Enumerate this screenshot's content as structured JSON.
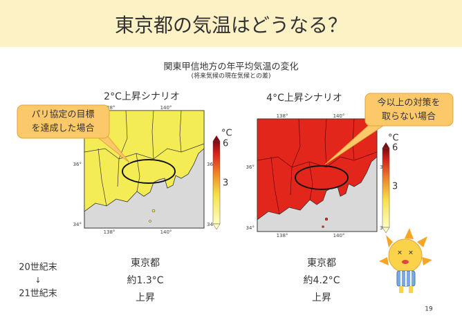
{
  "header": {
    "title": "東京都の気温はどうなる？"
  },
  "subtitle": "関東甲信地方の年平均気温の変化",
  "note": "(将来気候の現在気候との差)",
  "maps": [
    {
      "scenario": "2°C上昇シナリオ",
      "callout": [
        "パリ協定の目標",
        "を達成した場合"
      ],
      "lon_labels": [
        "138°",
        "140°"
      ],
      "lat_labels": [
        "36°",
        "34°"
      ],
      "colorbar": {
        "unit": "°C",
        "labels": [
          "6",
          "3"
        ]
      },
      "result": [
        "東京都",
        "約1.3°C",
        "上昇"
      ]
    },
    {
      "scenario": "4°C上昇シナリオ",
      "callout": [
        "今以上の対策を",
        "取らない場合"
      ],
      "lon_labels": [
        "138°",
        "140°"
      ],
      "lat_labels": [
        "36°",
        "34°"
      ],
      "colorbar": {
        "unit": "°C",
        "labels": [
          "6",
          "3"
        ]
      },
      "result": [
        "東京都",
        "約4.2°C",
        "上昇"
      ]
    }
  ],
  "period": [
    "20世紀末",
    "↓",
    "21世紀末"
  ],
  "page_number": "19"
}
